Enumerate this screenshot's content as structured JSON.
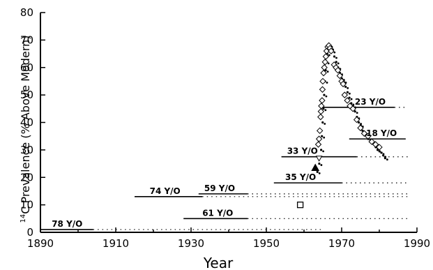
{
  "chart_data": {
    "type": "scatter",
    "title": "",
    "xlabel": "Year",
    "ylabel": "Prevalence (% Above Modern)",
    "ylabel_superscript": "14",
    "ylabel_sub": "C",
    "xlim": [
      1890,
      1990
    ],
    "ylim": [
      0,
      80
    ],
    "xticks": [
      1890,
      1910,
      1930,
      1950,
      1970,
      1990
    ],
    "yticks": [
      0,
      10,
      20,
      30,
      40,
      50,
      60,
      70,
      80
    ],
    "grid": false,
    "atmospheric_series": [
      {
        "x": 1963.0,
        "y": 22
      },
      {
        "x": 1963.5,
        "y": 25
      },
      {
        "x": 1964.0,
        "y": 30
      },
      {
        "x": 1964.2,
        "y": 35
      },
      {
        "x": 1964.4,
        "y": 40
      },
      {
        "x": 1964.6,
        "y": 45
      },
      {
        "x": 1964.8,
        "y": 50
      },
      {
        "x": 1965.0,
        "y": 55
      },
      {
        "x": 1965.2,
        "y": 59
      },
      {
        "x": 1965.4,
        "y": 62
      },
      {
        "x": 1965.6,
        "y": 65
      },
      {
        "x": 1965.8,
        "y": 67
      },
      {
        "x": 1966.0,
        "y": 68
      },
      {
        "x": 1966.3,
        "y": 68
      },
      {
        "x": 1966.6,
        "y": 67
      },
      {
        "x": 1967.0,
        "y": 66
      },
      {
        "x": 1967.5,
        "y": 64
      },
      {
        "x": 1968.0,
        "y": 62
      },
      {
        "x": 1968.5,
        "y": 60
      },
      {
        "x": 1969.0,
        "y": 58
      },
      {
        "x": 1969.5,
        "y": 56
      },
      {
        "x": 1970.0,
        "y": 55
      },
      {
        "x": 1970.5,
        "y": 53
      },
      {
        "x": 1971.0,
        "y": 51
      },
      {
        "x": 1971.5,
        "y": 49
      },
      {
        "x": 1972.0,
        "y": 47
      },
      {
        "x": 1972.5,
        "y": 46
      },
      {
        "x": 1973.0,
        "y": 44
      },
      {
        "x": 1973.5,
        "y": 42
      },
      {
        "x": 1974.0,
        "y": 40
      },
      {
        "x": 1974.5,
        "y": 39
      },
      {
        "x": 1975.0,
        "y": 37
      },
      {
        "x": 1975.5,
        "y": 36
      },
      {
        "x": 1976.0,
        "y": 35
      },
      {
        "x": 1976.5,
        "y": 34
      },
      {
        "x": 1977.0,
        "y": 33
      },
      {
        "x": 1977.5,
        "y": 32.5
      },
      {
        "x": 1978.0,
        "y": 32
      },
      {
        "x": 1978.5,
        "y": 31
      },
      {
        "x": 1979.0,
        "y": 30
      },
      {
        "x": 1979.5,
        "y": 29.5
      },
      {
        "x": 1980.0,
        "y": 29
      },
      {
        "x": 1980.5,
        "y": 28
      },
      {
        "x": 1981.0,
        "y": 27
      }
    ],
    "diamond_points": [
      {
        "x": 1963.8,
        "y": 32
      },
      {
        "x": 1964.0,
        "y": 34
      },
      {
        "x": 1964.2,
        "y": 37
      },
      {
        "x": 1964.4,
        "y": 42
      },
      {
        "x": 1964.5,
        "y": 44
      },
      {
        "x": 1964.6,
        "y": 46
      },
      {
        "x": 1964.8,
        "y": 48
      },
      {
        "x": 1964.9,
        "y": 52
      },
      {
        "x": 1965.0,
        "y": 55
      },
      {
        "x": 1965.2,
        "y": 58
      },
      {
        "x": 1965.4,
        "y": 60
      },
      {
        "x": 1965.6,
        "y": 62
      },
      {
        "x": 1965.8,
        "y": 64
      },
      {
        "x": 1966.0,
        "y": 66
      },
      {
        "x": 1966.3,
        "y": 67.5
      },
      {
        "x": 1966.6,
        "y": 68
      },
      {
        "x": 1966.9,
        "y": 67
      },
      {
        "x": 1967.2,
        "y": 66
      },
      {
        "x": 1968.0,
        "y": 61
      },
      {
        "x": 1968.5,
        "y": 60
      },
      {
        "x": 1969.0,
        "y": 59
      },
      {
        "x": 1969.5,
        "y": 57
      },
      {
        "x": 1970.0,
        "y": 55
      },
      {
        "x": 1970.4,
        "y": 54
      },
      {
        "x": 1970.8,
        "y": 50
      },
      {
        "x": 1971.5,
        "y": 48
      },
      {
        "x": 1972.2,
        "y": 46
      },
      {
        "x": 1973.0,
        "y": 45
      },
      {
        "x": 1974.0,
        "y": 41
      },
      {
        "x": 1975.0,
        "y": 38
      },
      {
        "x": 1976.0,
        "y": 36
      },
      {
        "x": 1977.0,
        "y": 35
      },
      {
        "x": 1978.0,
        "y": 33
      },
      {
        "x": 1979.0,
        "y": 32
      },
      {
        "x": 1980.0,
        "y": 31
      }
    ],
    "other_markers": [
      {
        "shape": "triangle-filled",
        "x": 1963.0,
        "y": 23.5
      },
      {
        "shape": "triangle-open",
        "x": 1964.0,
        "y": 27
      },
      {
        "shape": "square-open",
        "x": 1959.0,
        "y": 10
      }
    ],
    "annotations": [
      {
        "label": "78 Y/O",
        "x_start": 1890,
        "x_end": 1904,
        "y": 1,
        "dotted_to": 1965,
        "label_x": 1893
      },
      {
        "label": "74 Y/O",
        "x_start": 1915,
        "x_end": 1933,
        "y": 13,
        "dotted_to": 1988,
        "label_x": 1919
      },
      {
        "label": "59 Y/O",
        "x_start": 1932,
        "x_end": 1945,
        "y": 14,
        "dotted_to": 1988,
        "label_x": 1933.5
      },
      {
        "label": "61 Y/O",
        "x_start": 1928,
        "x_end": 1945,
        "y": 5,
        "dotted_to": 1988,
        "label_x": 1933
      },
      {
        "label": "35 Y/O",
        "x_start": 1952,
        "x_end": 1970,
        "y": 18,
        "dotted_to": 1988,
        "label_x": 1955
      },
      {
        "label": "33 Y/O",
        "x_start": 1954,
        "x_end": 1974,
        "y": 27.5,
        "dotted_to": 1988,
        "label_x": 1955.5
      },
      {
        "label": "23 Y/O",
        "x_start": 1965,
        "x_end": 1984,
        "y": 45.5,
        "dotted_to": 1987,
        "label_x": 1973.5
      },
      {
        "label": "18 Y/O",
        "x_start": 1972,
        "x_end": 1987,
        "y": 34,
        "dotted_to": 1987,
        "label_x": 1976.5
      }
    ]
  }
}
